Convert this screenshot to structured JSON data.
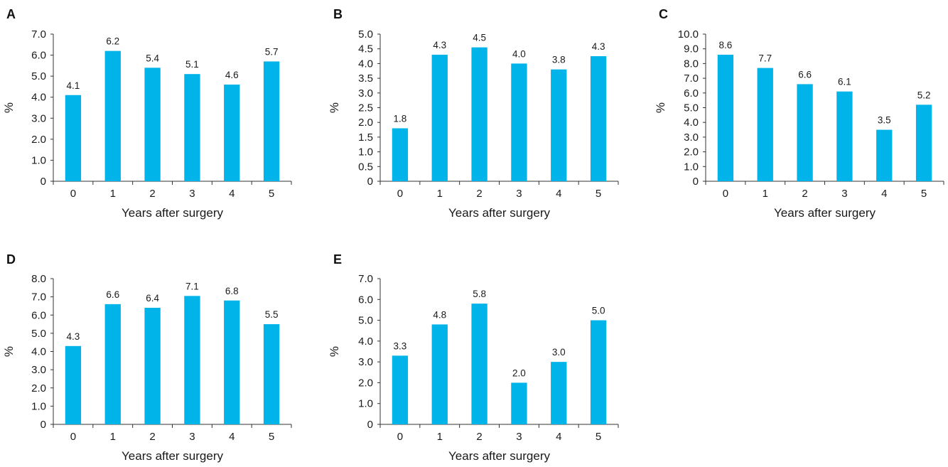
{
  "style": {
    "bar_color": "#00b4ea",
    "axis_color": "#333333",
    "text_color": "#1a1a1a"
  },
  "chart_data": [
    {
      "panel": "A",
      "type": "bar",
      "categories": [
        "0",
        "1",
        "2",
        "3",
        "4",
        "5"
      ],
      "values": [
        4.1,
        6.2,
        5.4,
        5.1,
        4.6,
        5.7
      ],
      "value_labels": [
        "4.1",
        "6.2",
        "5.4",
        "5.1",
        "4.6",
        "5.7"
      ],
      "xlabel": "Years after surgery",
      "ylabel": "%",
      "ylim": [
        0,
        7
      ],
      "yticks": [
        "0",
        "1.0",
        "2.0",
        "3.0",
        "4.0",
        "5.0",
        "6.0",
        "7.0"
      ],
      "grid": false
    },
    {
      "panel": "B",
      "type": "bar",
      "categories": [
        "0",
        "1",
        "2",
        "3",
        "4",
        "5"
      ],
      "values": [
        1.8,
        4.3,
        4.55,
        4.0,
        3.8,
        4.25
      ],
      "value_labels": [
        "1.8",
        "4.3",
        "4.5",
        "4.0",
        "3.8",
        "4.3"
      ],
      "xlabel": "Years after surgery",
      "ylabel": "%",
      "ylim": [
        0,
        5
      ],
      "yticks": [
        "0",
        "0.5",
        "1.0",
        "1.5",
        "2.0",
        "2.5",
        "3.0",
        "3.5",
        "4.0",
        "4.5",
        "5.0"
      ],
      "grid": false
    },
    {
      "panel": "C",
      "type": "bar",
      "categories": [
        "0",
        "1",
        "2",
        "3",
        "4",
        "5"
      ],
      "values": [
        8.6,
        7.7,
        6.6,
        6.1,
        3.5,
        5.2
      ],
      "value_labels": [
        "8.6",
        "7.7",
        "6.6",
        "6.1",
        "3.5",
        "5.2"
      ],
      "xlabel": "Years after surgery",
      "ylabel": "%",
      "ylim": [
        0,
        10
      ],
      "yticks": [
        "0",
        "1.0",
        "2.0",
        "3.0",
        "4.0",
        "5.0",
        "6.0",
        "7.0",
        "8.0",
        "9.0",
        "10.0"
      ],
      "grid": false
    },
    {
      "panel": "D",
      "type": "bar",
      "categories": [
        "0",
        "1",
        "2",
        "3",
        "4",
        "5"
      ],
      "values": [
        4.3,
        6.6,
        6.4,
        7.05,
        6.8,
        5.5
      ],
      "value_labels": [
        "4.3",
        "6.6",
        "6.4",
        "7.1",
        "6.8",
        "5.5"
      ],
      "xlabel": "Years after surgery",
      "ylabel": "%",
      "ylim": [
        0,
        8
      ],
      "yticks": [
        "0",
        "1.0",
        "2.0",
        "3.0",
        "4.0",
        "5.0",
        "6.0",
        "7.0",
        "8.0"
      ],
      "grid": false
    },
    {
      "panel": "E",
      "type": "bar",
      "categories": [
        "0",
        "1",
        "2",
        "3",
        "4",
        "5"
      ],
      "values": [
        3.3,
        4.8,
        5.8,
        2.0,
        3.0,
        5.0
      ],
      "value_labels": [
        "3.3",
        "4.8",
        "5.8",
        "2.0",
        "3.0",
        "5.0"
      ],
      "xlabel": "Years after surgery",
      "ylabel": "%",
      "ylim": [
        0,
        7
      ],
      "yticks": [
        "0",
        "1.0",
        "2.0",
        "3.0",
        "4.0",
        "5.0",
        "6.0",
        "7.0"
      ],
      "grid": false
    }
  ]
}
